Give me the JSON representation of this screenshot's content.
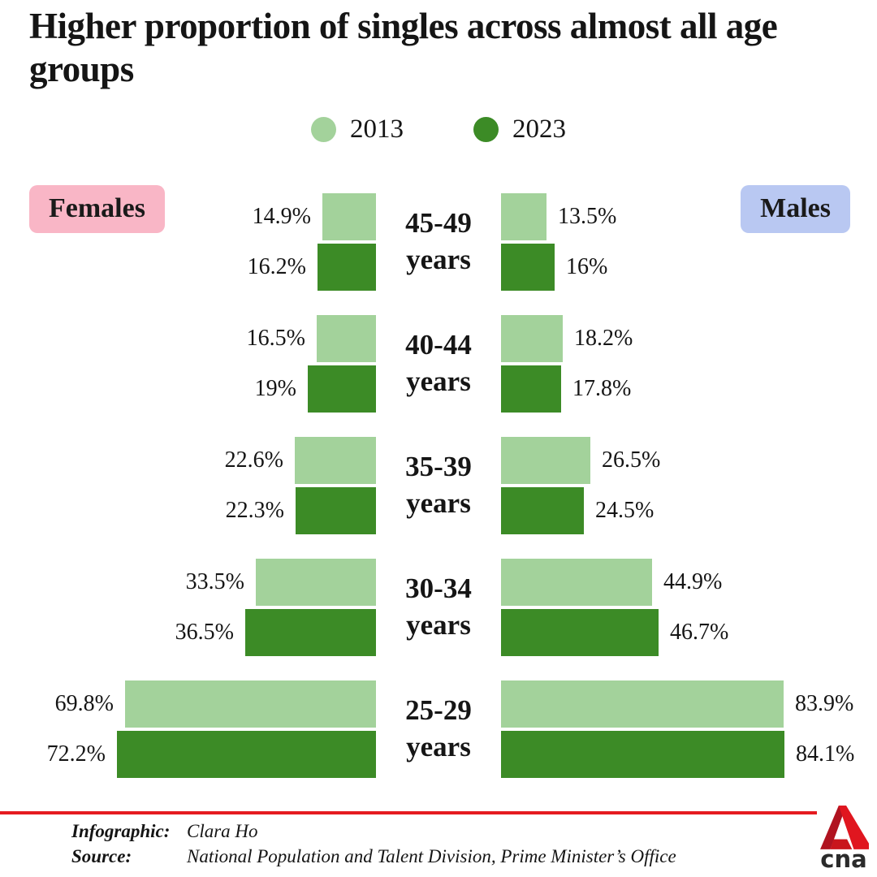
{
  "title": "Higher proportion of singles across almost all age groups",
  "colors": {
    "green_2013": "#a3d29b",
    "green_2023": "#3c8b26",
    "female_badge_bg": "#f9b6c6",
    "male_badge_bg": "#b9c8f2",
    "divider_red": "#e51b20",
    "text": "#151515"
  },
  "legend": {
    "items": [
      {
        "label": "2013",
        "color_key": "green_2013"
      },
      {
        "label": "2023",
        "color_key": "green_2023"
      }
    ]
  },
  "badges": {
    "females": "Females",
    "males": "Males"
  },
  "chart_data": {
    "type": "bar",
    "subtype": "population-pyramid",
    "unit": "percent",
    "series": [
      "2013",
      "2023"
    ],
    "sides": [
      "Females",
      "Males"
    ],
    "age_groups": [
      {
        "age": "45-49",
        "suffix": "years",
        "females": {
          "v2013": 14.9,
          "v2023": 16.2,
          "label2013": "14.9%",
          "label2023": "16.2%"
        },
        "males": {
          "v2013": 13.5,
          "v2023": 16.0,
          "label2013": "13.5%",
          "label2023": "16%"
        }
      },
      {
        "age": "40-44",
        "suffix": "years",
        "females": {
          "v2013": 16.5,
          "v2023": 19.0,
          "label2013": "16.5%",
          "label2023": "19%"
        },
        "males": {
          "v2013": 18.2,
          "v2023": 17.8,
          "label2013": "18.2%",
          "label2023": "17.8%"
        }
      },
      {
        "age": "35-39",
        "suffix": "years",
        "females": {
          "v2013": 22.6,
          "v2023": 22.3,
          "label2013": "22.6%",
          "label2023": "22.3%"
        },
        "males": {
          "v2013": 26.5,
          "v2023": 24.5,
          "label2013": "26.5%",
          "label2023": "24.5%"
        }
      },
      {
        "age": "30-34",
        "suffix": "years",
        "females": {
          "v2013": 33.5,
          "v2023": 36.5,
          "label2013": "33.5%",
          "label2023": "36.5%"
        },
        "males": {
          "v2013": 44.9,
          "v2023": 46.7,
          "label2013": "44.9%",
          "label2023": "46.7%"
        }
      },
      {
        "age": "25-29",
        "suffix": "years",
        "females": {
          "v2013": 69.8,
          "v2023": 72.2,
          "label2013": "69.8%",
          "label2023": "72.2%"
        },
        "males": {
          "v2013": 83.9,
          "v2023": 84.1,
          "label2013": "83.9%",
          "label2023": "84.1%"
        }
      }
    ]
  },
  "footer": {
    "infographic_label": "Infographic:",
    "infographic_value": "Clara Ho",
    "source_label": "Source:",
    "source_value": "National Population and Talent Division, Prime Minister’s Office",
    "logo_text": "cna"
  }
}
